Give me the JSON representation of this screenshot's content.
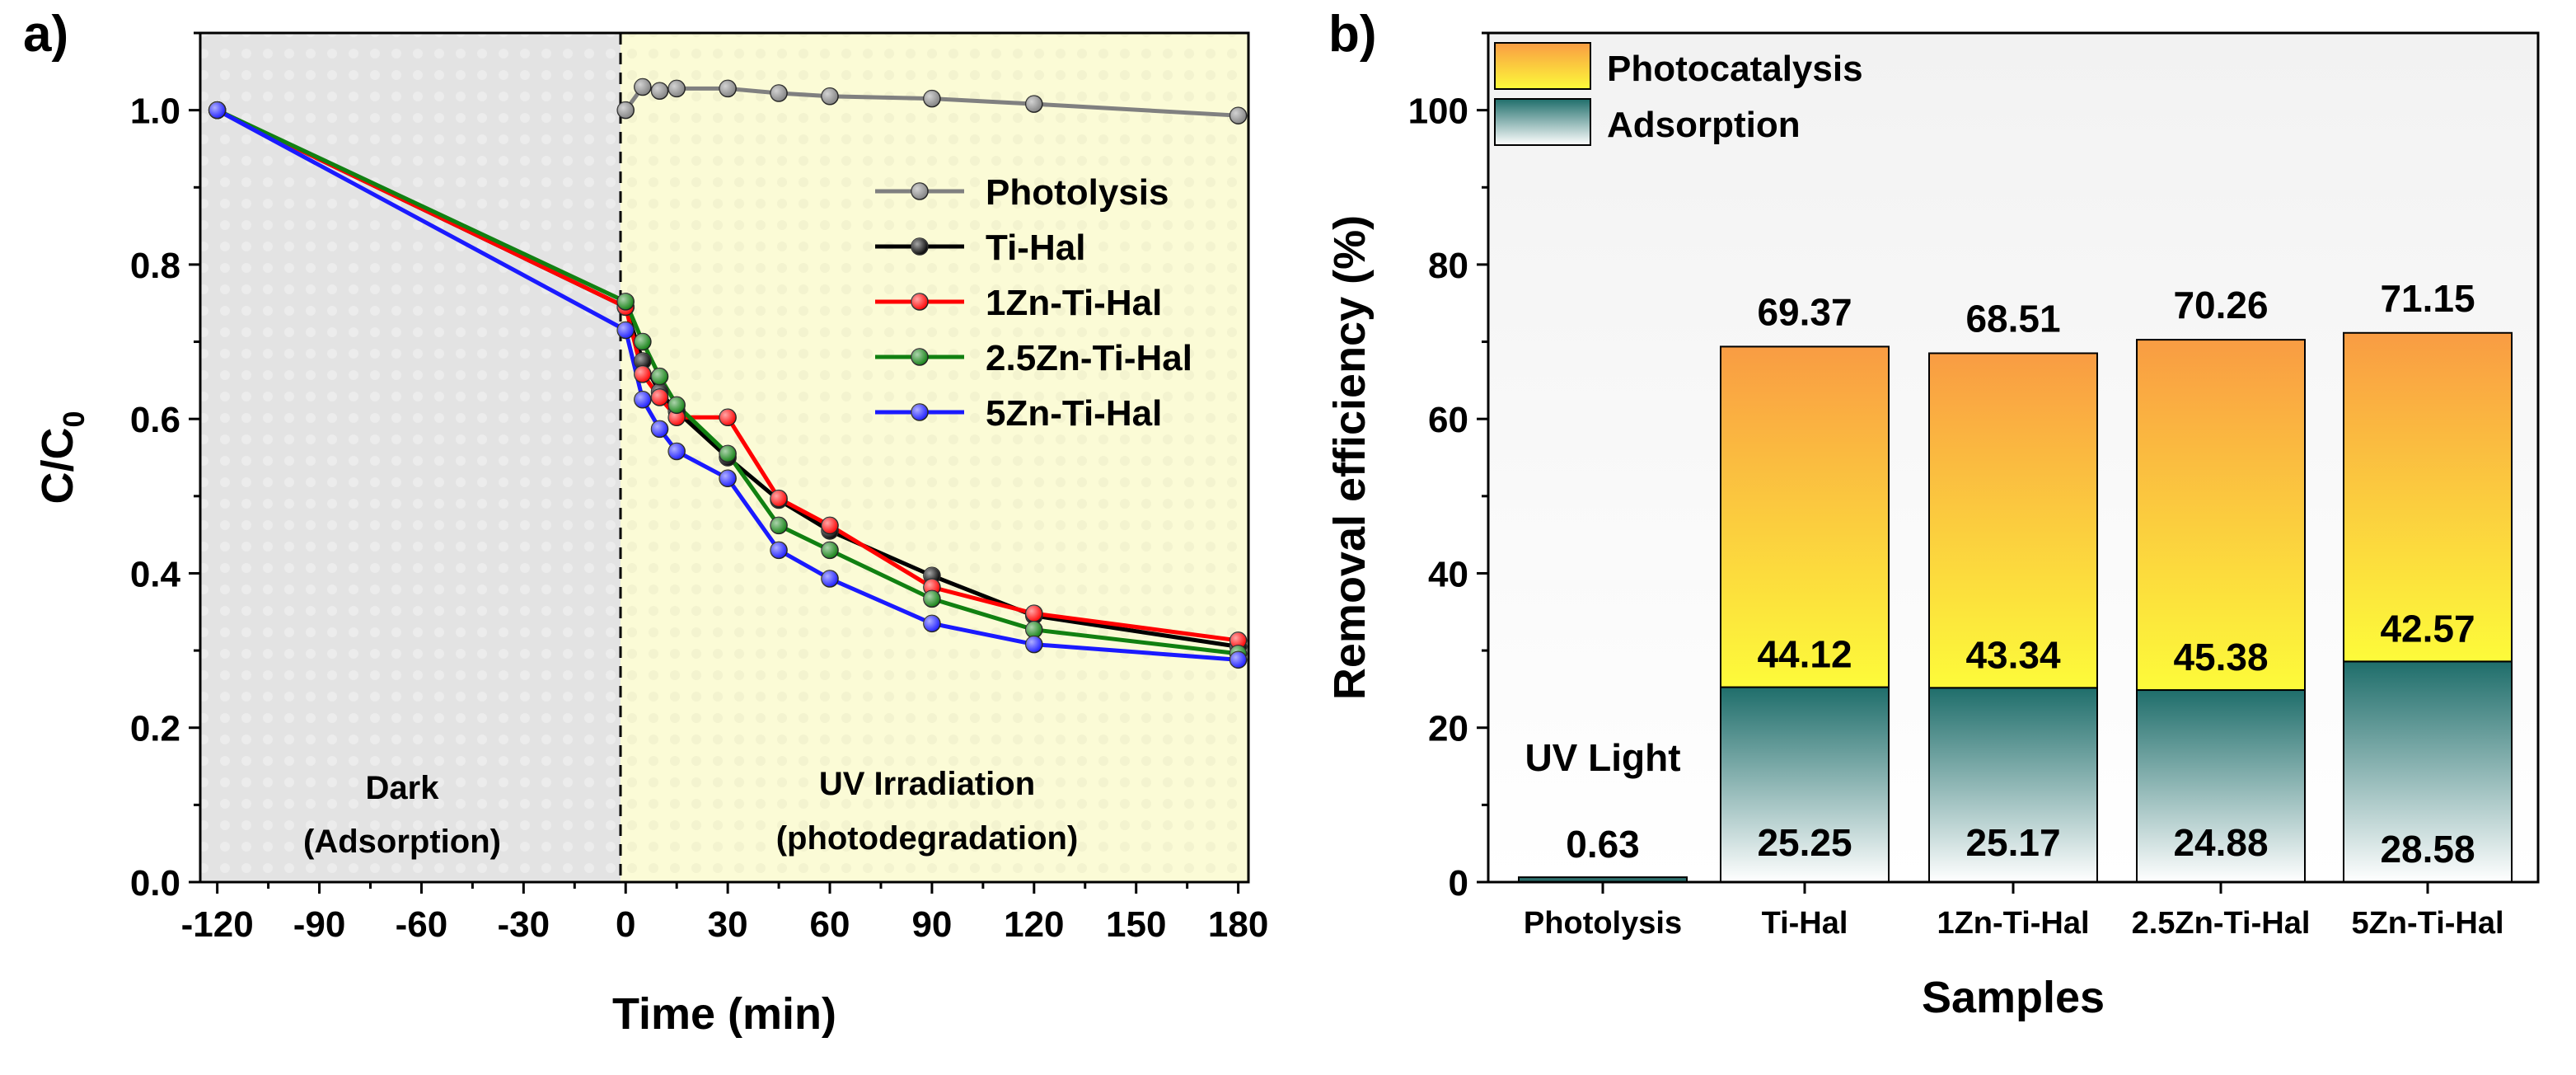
{
  "chart_data": [
    {
      "panel": "a)",
      "type": "line",
      "xlabel": "Time (min)",
      "ylabel": "C/C",
      "ylabel_sub": "0",
      "xlim": [
        -125,
        183
      ],
      "ylim": [
        0,
        1.1
      ],
      "xticks": [
        -120,
        -90,
        -60,
        -30,
        0,
        30,
        60,
        90,
        120,
        150,
        180
      ],
      "yticks": [
        0.0,
        0.2,
        0.4,
        0.6,
        0.8,
        1.0
      ],
      "ytick_labels": [
        "0.0",
        "0.2",
        "0.4",
        "0.6",
        "0.8",
        "1.0"
      ],
      "regions": [
        {
          "name": "dark",
          "x": [
            -125,
            0
          ],
          "color": "#e6e6e6",
          "label_lines": [
            "Dark",
            "(Adsorption)"
          ]
        },
        {
          "name": "uv",
          "x": [
            0,
            183
          ],
          "color": "#fcfbd8",
          "label_lines": [
            "UV Irradiation",
            "(photodegradation)"
          ]
        }
      ],
      "divider_x": 0,
      "series": [
        {
          "name": "Photolysis",
          "color": "#808080",
          "x": [
            0,
            5,
            10,
            15,
            30,
            45,
            60,
            90,
            120,
            180
          ],
          "y": [
            1.0,
            1.03,
            1.025,
            1.028,
            1.028,
            1.022,
            1.018,
            1.015,
            1.008,
            0.993
          ]
        },
        {
          "name": "Ti-Hal",
          "color": "#000000",
          "x": [
            -120,
            0,
            5,
            10,
            15,
            30,
            45,
            60,
            90,
            120,
            180
          ],
          "y": [
            1.0,
            0.745,
            0.675,
            0.635,
            0.61,
            0.55,
            0.495,
            0.455,
            0.397,
            0.345,
            0.305
          ]
        },
        {
          "name": "1Zn-Ti-Hal",
          "color": "#ff0000",
          "x": [
            -120,
            0,
            5,
            10,
            15,
            30,
            45,
            60,
            90,
            120,
            180
          ],
          "y": [
            1.0,
            0.745,
            0.658,
            0.628,
            0.602,
            0.602,
            0.497,
            0.462,
            0.382,
            0.348,
            0.313
          ]
        },
        {
          "name": "2.5Zn-Ti-Hal",
          "color": "#118011",
          "x": [
            -120,
            0,
            5,
            10,
            15,
            30,
            45,
            60,
            90,
            120,
            180
          ],
          "y": [
            1.0,
            0.752,
            0.7,
            0.655,
            0.618,
            0.555,
            0.462,
            0.43,
            0.367,
            0.327,
            0.296
          ]
        },
        {
          "name": "5Zn-Ti-Hal",
          "color": "#1a1aff",
          "x": [
            -120,
            0,
            5,
            10,
            15,
            30,
            45,
            60,
            90,
            120,
            180
          ],
          "y": [
            1.0,
            0.715,
            0.625,
            0.587,
            0.558,
            0.523,
            0.43,
            0.393,
            0.335,
            0.308,
            0.288
          ]
        }
      ],
      "legend_position": "upper-right"
    },
    {
      "panel": "b)",
      "type": "bar",
      "stacked": true,
      "xlabel": "Samples",
      "ylabel": "Removal efficiency (%)",
      "ylim": [
        0,
        110
      ],
      "yticks": [
        0,
        20,
        40,
        60,
        80,
        100
      ],
      "categories": [
        "Photolysis",
        "Ti-Hal",
        "1Zn-Ti-Hal",
        "2.5Zn-Ti-Hal",
        "5Zn-Ti-Hal"
      ],
      "series": [
        {
          "name": "Adsorption",
          "values": [
            0,
            25.25,
            25.17,
            24.88,
            28.58
          ],
          "labels": [
            "",
            "25.25",
            "25.17",
            "24.88",
            "28.58"
          ],
          "color_top": "#1f6e6b",
          "color_bottom": "#ffffff"
        },
        {
          "name": "Photocatalysis",
          "values": [
            0.63,
            44.12,
            43.34,
            45.38,
            42.57
          ],
          "labels": [
            "0.63",
            "44.12",
            "43.34",
            "45.38",
            "42.57"
          ],
          "color_top": "#f99c43",
          "color_bottom": "#fdfb3a"
        }
      ],
      "totals": [
        0.63,
        69.37,
        68.51,
        70.26,
        71.15
      ],
      "total_labels": [
        "",
        "69.37",
        "68.51",
        "70.26",
        "71.15"
      ],
      "annotation": "UV Light",
      "photolysis_bar_color": "#2c6f6c",
      "legend_position": "upper-left",
      "legend_order": [
        "Photocatalysis",
        "Adsorption"
      ]
    }
  ]
}
